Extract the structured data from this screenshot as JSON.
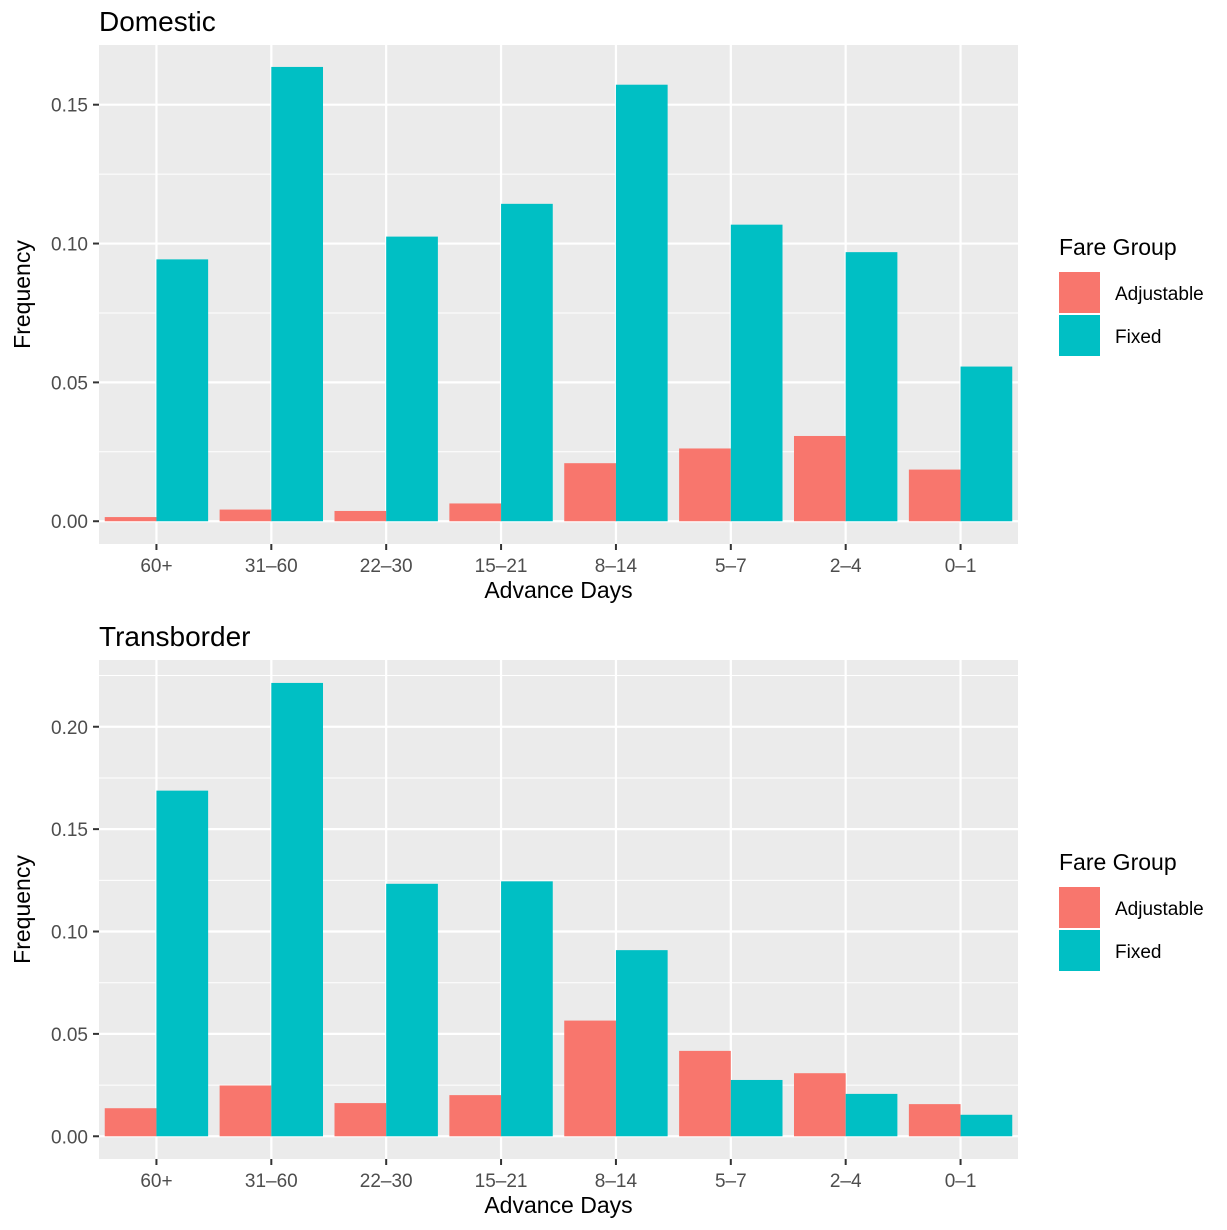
{
  "chart_data": [
    {
      "type": "bar",
      "title": "Domestic",
      "xlabel": "Advance Days",
      "ylabel": "Frequency",
      "categories": [
        "60+",
        "31–60",
        "22–30",
        "15–21",
        "8–14",
        "5–7",
        "2–4",
        "0–1"
      ],
      "ylim": [
        -0.0082,
        0.1715
      ],
      "yticks": [
        0.0,
        0.05,
        0.1,
        0.15
      ],
      "ytick_labels": [
        "0.00",
        "0.05",
        "0.10",
        "0.15"
      ],
      "series": [
        {
          "name": "Adjustable",
          "color": "#F8766D",
          "values": [
            0.0015,
            0.0042,
            0.0037,
            0.0064,
            0.0209,
            0.0262,
            0.0307,
            0.0186
          ]
        },
        {
          "name": "Fixed",
          "color": "#00BFC4",
          "values": [
            0.0943,
            0.1636,
            0.1025,
            0.1143,
            0.1572,
            0.1068,
            0.0969,
            0.0557
          ]
        }
      ],
      "legend": {
        "title": "Fare Group",
        "position": "right"
      },
      "grid": true
    },
    {
      "type": "bar",
      "title": "Transborder",
      "xlabel": "Advance Days",
      "ylabel": "Frequency",
      "categories": [
        "60+",
        "31–60",
        "22–30",
        "15–21",
        "8–14",
        "5–7",
        "2–4",
        "0–1"
      ],
      "ylim": [
        -0.0111,
        0.2326
      ],
      "yticks": [
        0.0,
        0.05,
        0.1,
        0.15,
        0.2
      ],
      "ytick_labels": [
        "0.00",
        "0.05",
        "0.10",
        "0.15",
        "0.20"
      ],
      "series": [
        {
          "name": "Adjustable",
          "color": "#F8766D",
          "values": [
            0.0137,
            0.0248,
            0.0162,
            0.0201,
            0.0565,
            0.0417,
            0.0308,
            0.0157
          ]
        },
        {
          "name": "Fixed",
          "color": "#00BFC4",
          "values": [
            0.1688,
            0.2214,
            0.1233,
            0.1245,
            0.0909,
            0.0275,
            0.0207,
            0.0105
          ]
        }
      ],
      "legend": {
        "title": "Fare Group",
        "position": "right"
      },
      "grid": true
    }
  ]
}
